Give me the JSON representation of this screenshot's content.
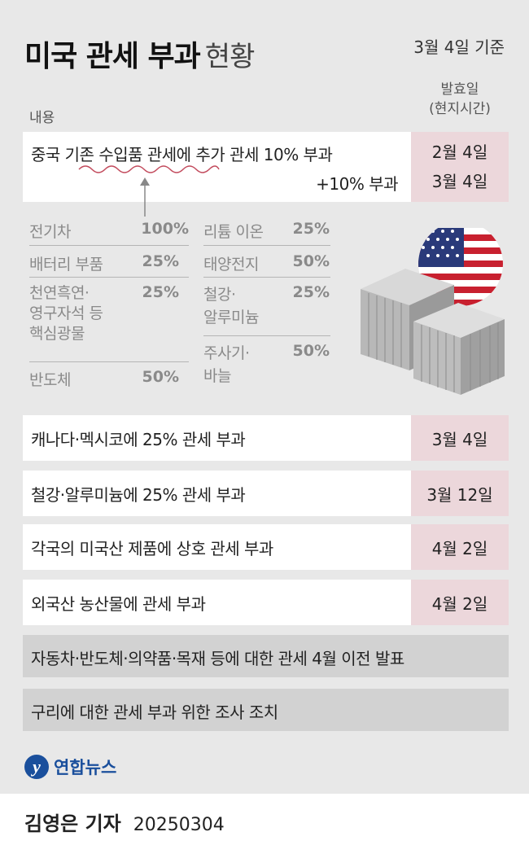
{
  "title": {
    "main": "미국 관세 부과",
    "sub": "현황"
  },
  "as_of": "3월 4일 기준",
  "headers": {
    "content": "내용",
    "date_line1": "발효일",
    "date_line2": "(현지시간)"
  },
  "china": {
    "line1": "중국 기존 수입품 관세에 추가 관세 10% 부과",
    "line2": "+10% 부과",
    "date1": "2월 4일",
    "date2": "3월 4일"
  },
  "existing_tariffs": [
    {
      "item": "전기차",
      "rate": "100%"
    },
    {
      "item": "배터리 부품",
      "rate": "25%"
    },
    {
      "item": "천연흑연·",
      "item2": "영구자석 등",
      "item3": "핵심광물",
      "rate": "25%"
    },
    {
      "item": "반도체",
      "rate": "50%"
    },
    {
      "item": "리튬 이온",
      "rate": "25%"
    },
    {
      "item": "태양전지",
      "rate": "50%"
    },
    {
      "item": "철강·",
      "item2": "알루미늄",
      "rate": "25%"
    },
    {
      "item": "주사기·",
      "item2": "바늘",
      "rate": "50%"
    }
  ],
  "rows": [
    {
      "text": "캐나다·멕시코에 25% 관세 부과",
      "date": "3월 4일"
    },
    {
      "text": "철강·알루미늄에 25% 관세 부과",
      "date": "3월 12일"
    },
    {
      "text": "각국의 미국산 제품에 상호 관세 부과",
      "date": "4월 2일"
    },
    {
      "text": "외국산 농산물에 관세 부과",
      "date": "4월 2일"
    }
  ],
  "gray_rows": [
    "자동차·반도체·의약품·목재 등에 대한 관세 4월 이전 발표",
    "구리에 대한 관세 부과 위한 조사 조치"
  ],
  "logo": {
    "text": "연합뉴스"
  },
  "reporter": {
    "name": "김영은 기자",
    "date": "20250304"
  },
  "colors": {
    "date_box": "#ecd7db",
    "gray_row": "#d2d2d2",
    "background": "#e8e8e8"
  }
}
